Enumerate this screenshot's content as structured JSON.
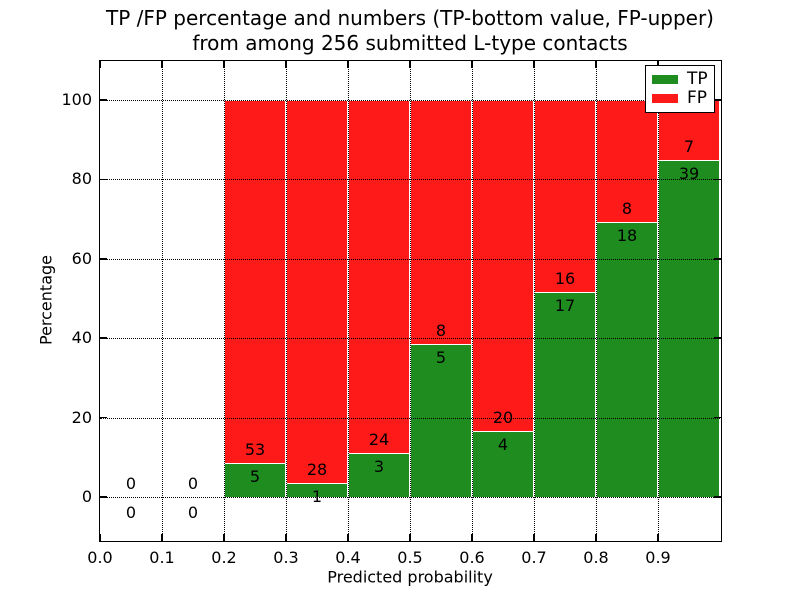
{
  "title": {
    "line1": "TP /FP percentage and numbers (TP-bottom value, FP-upper)",
    "line2": "from among 256 submitted L-type contacts"
  },
  "chart_data": {
    "type": "bar",
    "stacked": true,
    "title": "TP /FP percentage and numbers (TP-bottom value, FP-upper)\nfrom among 256 submitted L-type contacts",
    "xlabel": "Predicted probability",
    "ylabel": "Percentage",
    "xlim": [
      0.0,
      1.0
    ],
    "ylim": [
      -10.8,
      109.8
    ],
    "grid": "dotted",
    "legend": {
      "position": "upper right",
      "entries": [
        {
          "label": "TP",
          "color": "#1f8c1f"
        },
        {
          "label": "FP",
          "color": "#ff1a1a"
        }
      ]
    },
    "bar_colors": {
      "tp": "#1f8c1f",
      "fp": "#ff1a1a"
    },
    "bar_edge_color": "#ffffff",
    "xticks": [
      {
        "v": 0.0,
        "label": "0.0"
      },
      {
        "v": 0.1,
        "label": "0.1"
      },
      {
        "v": 0.2,
        "label": "0.2"
      },
      {
        "v": 0.3,
        "label": "0.3"
      },
      {
        "v": 0.4,
        "label": "0.4"
      },
      {
        "v": 0.5,
        "label": "0.5"
      },
      {
        "v": 0.6,
        "label": "0.6"
      },
      {
        "v": 0.7,
        "label": "0.7"
      },
      {
        "v": 0.8,
        "label": "0.8"
      },
      {
        "v": 0.9,
        "label": "0.9"
      }
    ],
    "yticks": [
      {
        "v": 0,
        "label": "0"
      },
      {
        "v": 20,
        "label": "20"
      },
      {
        "v": 40,
        "label": "40"
      },
      {
        "v": 60,
        "label": "60"
      },
      {
        "v": 80,
        "label": "80"
      },
      {
        "v": 100,
        "label": "100"
      }
    ],
    "bins": [
      {
        "x0": 0.0,
        "x1": 0.1,
        "tp": 0,
        "fp": 0,
        "tp_pct": 0,
        "fp_pct": 0
      },
      {
        "x0": 0.1,
        "x1": 0.2,
        "tp": 0,
        "fp": 0,
        "tp_pct": 0,
        "fp_pct": 0
      },
      {
        "x0": 0.2,
        "x1": 0.3,
        "tp": 5,
        "fp": 53,
        "tp_pct": 8.62,
        "fp_pct": 91.38
      },
      {
        "x0": 0.3,
        "x1": 0.4,
        "tp": 1,
        "fp": 28,
        "tp_pct": 3.45,
        "fp_pct": 96.55
      },
      {
        "x0": 0.4,
        "x1": 0.5,
        "tp": 3,
        "fp": 24,
        "tp_pct": 11.11,
        "fp_pct": 88.89
      },
      {
        "x0": 0.5,
        "x1": 0.6,
        "tp": 5,
        "fp": 8,
        "tp_pct": 38.46,
        "fp_pct": 61.54
      },
      {
        "x0": 0.6,
        "x1": 0.7,
        "tp": 4,
        "fp": 20,
        "tp_pct": 16.67,
        "fp_pct": 83.33
      },
      {
        "x0": 0.7,
        "x1": 0.8,
        "tp": 17,
        "fp": 16,
        "tp_pct": 51.52,
        "fp_pct": 48.48
      },
      {
        "x0": 0.8,
        "x1": 0.9,
        "tp": 18,
        "fp": 8,
        "tp_pct": 69.23,
        "fp_pct": 30.77
      },
      {
        "x0": 0.9,
        "x1": 1.0,
        "tp": 39,
        "fp": 7,
        "tp_pct": 84.78,
        "fp_pct": 15.22
      }
    ]
  }
}
